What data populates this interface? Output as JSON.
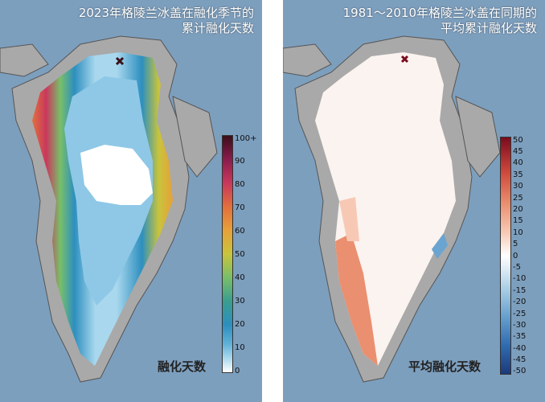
{
  "left_panel": {
    "title_line1": "2023年格陵兰冰盖在融化季节的",
    "title_line2": "累计融化天数",
    "legend_label": "融化天数",
    "colorbar": {
      "ticks": [
        "100+",
        "90",
        "80",
        "70",
        "60",
        "50",
        "40",
        "30",
        "20",
        "10",
        "0"
      ],
      "colors": [
        "#ffffff",
        "#a9d8ee",
        "#5fb1d8",
        "#2d8fbf",
        "#3a9e8f",
        "#78bf6a",
        "#c8c43c",
        "#e6a13a",
        "#e26f3c",
        "#c9385d",
        "#8a1c4d",
        "#3a0f18"
      ]
    }
  },
  "right_panel": {
    "title_line1": "1981～2010年格陵兰冰盖在同期的",
    "title_line2": "平均累计融化天数",
    "legend_label": "平均融化天数",
    "colorbar": {
      "ticks": [
        "50",
        "45",
        "40",
        "35",
        "30",
        "25",
        "20",
        "15",
        "10",
        "5",
        "0",
        "-5",
        "-10",
        "-15",
        "-20",
        "-25",
        "-30",
        "-35",
        "-40",
        "-45",
        "-50"
      ],
      "colors": [
        "#1c3a7a",
        "#2f6bb0",
        "#6aa4d0",
        "#b7d6ea",
        "#ffffff",
        "#f7c9b4",
        "#ea8f70",
        "#cf4a3d",
        "#7a0b1e"
      ]
    }
  },
  "colors": {
    "ocean": "#7d9fbe",
    "land": "#a9a9a9"
  }
}
